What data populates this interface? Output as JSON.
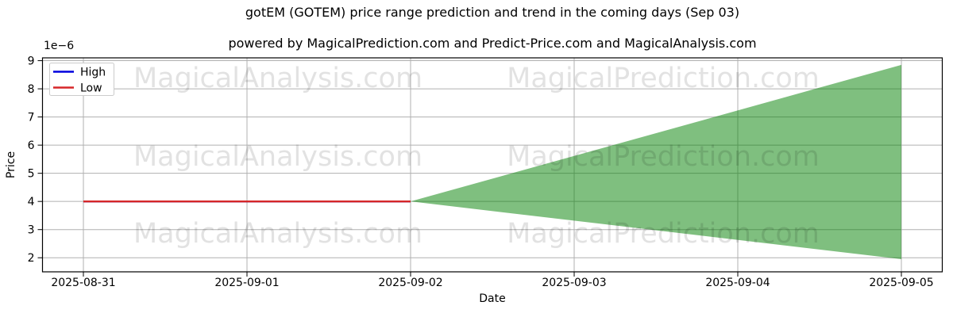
{
  "chart_data": {
    "type": "area",
    "title": "gotEM (GOTEM) price range prediction and trend in the coming days (Sep 03)",
    "subtitle": "powered by MagicalPrediction.com and Predict-Price.com and MagicalAnalysis.com",
    "xlabel": "Date",
    "ylabel": "Price",
    "y_offset_label": "1e−6",
    "unit_multiplier": 1e-06,
    "x_tick_labels": [
      "2025-08-31",
      "2025-09-01",
      "2025-09-02",
      "2025-09-03",
      "2025-09-04",
      "2025-09-05"
    ],
    "x_tick_days": [
      0,
      1,
      2,
      3,
      4,
      5
    ],
    "y_ticks": [
      2,
      3,
      4,
      5,
      6,
      7,
      8,
      9
    ],
    "xlim_days": [
      -0.25,
      5.25
    ],
    "ylim": [
      1.5,
      9.1
    ],
    "grid": true,
    "legend": {
      "position": "upper-left",
      "entries": [
        {
          "label": "High",
          "color": "#0000dd"
        },
        {
          "label": "Low",
          "color": "#d62728"
        }
      ]
    },
    "series": [
      {
        "name": "High",
        "color": "#0000dd",
        "x_days": [
          0,
          1,
          2
        ],
        "values": [
          4.0,
          4.0,
          4.0
        ]
      },
      {
        "name": "Low",
        "color": "#d62728",
        "x_days": [
          0,
          1,
          2
        ],
        "values": [
          4.0,
          4.0,
          4.0
        ]
      }
    ],
    "prediction_band": {
      "name": "prediction-range",
      "color": "#008000",
      "opacity": 0.5,
      "x_days": [
        2,
        5
      ],
      "high": [
        4.0,
        8.85
      ],
      "low": [
        4.0,
        1.95
      ]
    },
    "watermarks": [
      "MagicalAnalysis.com",
      "MagicalPrediction.com"
    ],
    "colors": {
      "grid": "#b0b0b0",
      "spine": "#000000",
      "background": "#ffffff",
      "band_fill_on_white": "#7fbf7f"
    }
  }
}
